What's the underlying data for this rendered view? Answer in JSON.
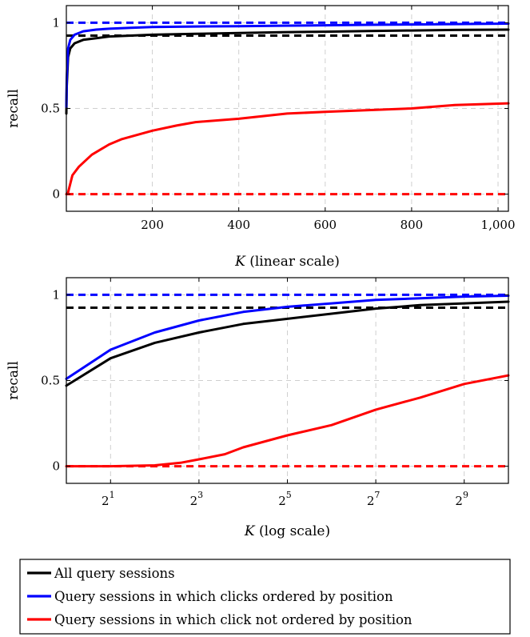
{
  "chart_data": [
    {
      "type": "line",
      "xscale": "linear",
      "xlabel_italic": "K",
      "xlabel_rest": " (linear scale)",
      "ylabel": "recall",
      "xlim": [
        1,
        1024
      ],
      "ylim": [
        -0.1,
        1.1
      ],
      "xticks": [
        200,
        400,
        600,
        800,
        1000
      ],
      "xtick_labels": [
        "200",
        "400",
        "600",
        "800",
        "1,000"
      ],
      "yticks": [
        0,
        0.5,
        1
      ],
      "ytick_labels": [
        "0",
        "0.5",
        "1"
      ],
      "grid": true,
      "series": [
        {
          "color": "#000000",
          "x": [
            1,
            2,
            5,
            10,
            20,
            40,
            70,
            100,
            150,
            200,
            300,
            400,
            500,
            600,
            700,
            800,
            900,
            1024
          ],
          "y": [
            0.47,
            0.63,
            0.8,
            0.85,
            0.88,
            0.9,
            0.91,
            0.92,
            0.925,
            0.93,
            0.935,
            0.94,
            0.945,
            0.948,
            0.952,
            0.955,
            0.958,
            0.96
          ]
        },
        {
          "color": "#0000ff",
          "x": [
            1,
            2,
            5,
            10,
            20,
            40,
            70,
            100,
            150,
            200,
            300,
            400,
            500,
            600,
            700,
            800,
            900,
            1024
          ],
          "y": [
            0.51,
            0.68,
            0.85,
            0.9,
            0.93,
            0.95,
            0.96,
            0.965,
            0.97,
            0.975,
            0.978,
            0.98,
            0.983,
            0.985,
            0.988,
            0.99,
            0.992,
            0.995
          ]
        },
        {
          "color": "#ff0000",
          "x": [
            1,
            2,
            5,
            8,
            15,
            30,
            60,
            100,
            128,
            200,
            256,
            300,
            400,
            512,
            600,
            700,
            800,
            900,
            1024
          ],
          "y": [
            0.0,
            0.0,
            0.01,
            0.04,
            0.11,
            0.16,
            0.23,
            0.29,
            0.32,
            0.37,
            0.4,
            0.42,
            0.44,
            0.47,
            0.48,
            0.49,
            0.5,
            0.52,
            0.53
          ]
        }
      ],
      "reference_lines": [
        {
          "color": "#0000ff",
          "y": 1.0
        },
        {
          "color": "#000000",
          "y": 0.925
        },
        {
          "color": "#ff0000",
          "y": 0.0
        }
      ]
    },
    {
      "type": "line",
      "xscale": "log2",
      "xlabel_italic": "K",
      "xlabel_rest": " (log scale)",
      "ylabel": "recall",
      "xlim": [
        1,
        1024
      ],
      "ylim": [
        -0.1,
        1.1
      ],
      "xticks": [
        2,
        8,
        32,
        128,
        512
      ],
      "xtick_bases": [
        "2",
        "2",
        "2",
        "2",
        "2"
      ],
      "xtick_exps": [
        "1",
        "3",
        "5",
        "7",
        "9"
      ],
      "yticks": [
        0,
        0.5,
        1
      ],
      "ytick_labels": [
        "0",
        "0.5",
        "1"
      ],
      "grid": true,
      "series": [
        {
          "color": "#000000",
          "x": [
            1,
            2,
            4,
            8,
            16,
            32,
            64,
            128,
            256,
            512,
            1024
          ],
          "y": [
            0.47,
            0.63,
            0.72,
            0.78,
            0.83,
            0.86,
            0.89,
            0.92,
            0.94,
            0.95,
            0.96
          ]
        },
        {
          "color": "#0000ff",
          "x": [
            1,
            2,
            4,
            8,
            16,
            32,
            64,
            128,
            256,
            512,
            1024
          ],
          "y": [
            0.51,
            0.68,
            0.78,
            0.85,
            0.9,
            0.93,
            0.95,
            0.97,
            0.98,
            0.99,
            0.995
          ]
        },
        {
          "color": "#ff0000",
          "x": [
            1,
            2,
            4,
            6,
            8,
            12,
            16,
            32,
            64,
            128,
            256,
            512,
            1024
          ],
          "y": [
            0.0,
            0.0,
            0.005,
            0.02,
            0.04,
            0.07,
            0.11,
            0.18,
            0.24,
            0.33,
            0.4,
            0.48,
            0.53
          ]
        }
      ],
      "reference_lines": [
        {
          "color": "#0000ff",
          "y": 1.0
        },
        {
          "color": "#000000",
          "y": 0.925
        },
        {
          "color": "#ff0000",
          "y": 0.0
        }
      ]
    }
  ],
  "legend": {
    "placement": "bottom",
    "entries": [
      {
        "label": "All query sessions",
        "color": "#000000"
      },
      {
        "label": "Query sessions in which clicks ordered by position",
        "color": "#0000ff"
      },
      {
        "label": "Query sessions in which click not ordered by position",
        "color": "#ff0000"
      }
    ]
  }
}
